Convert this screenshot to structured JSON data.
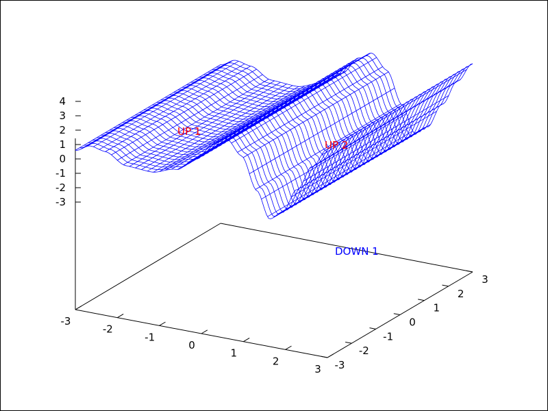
{
  "chart_data": {
    "type": "surface",
    "title": "",
    "x_ticks": [
      "-3",
      "-2",
      "-1",
      "0",
      "1",
      "2",
      "3"
    ],
    "y_ticks": [
      "-3",
      "-2",
      "-1",
      "0",
      "1",
      "2",
      "3"
    ],
    "z_ticks": [
      "-3",
      "-2",
      "-1",
      "0",
      "1",
      "2",
      "3",
      "4"
    ],
    "xlim": [
      -3,
      3
    ],
    "ylim": [
      -3,
      3
    ],
    "zlim": [
      -3,
      4.5
    ],
    "mesh": {
      "x_lines": 43,
      "y_lines": 35
    },
    "annotations": [
      {
        "text": "UP 1",
        "color": "#ff0000"
      },
      {
        "text": "UP 2",
        "color": "#ff0000"
      },
      {
        "text": "DOWN 1",
        "color": "#0000ff"
      }
    ],
    "mesh_color": "#0000ff",
    "axis_color": "#000000",
    "grid": false
  }
}
